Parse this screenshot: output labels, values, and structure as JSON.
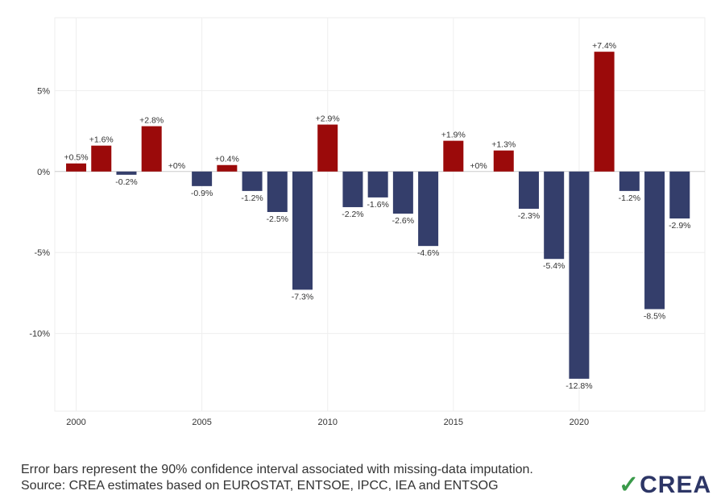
{
  "chart_data": {
    "type": "bar",
    "categories": [
      2000,
      2001,
      2002,
      2003,
      2004,
      2005,
      2006,
      2007,
      2008,
      2009,
      2010,
      2011,
      2012,
      2013,
      2014,
      2015,
      2016,
      2017,
      2018,
      2019,
      2020,
      2021,
      2022,
      2023,
      2024
    ],
    "values": [
      0.5,
      1.6,
      -0.2,
      2.8,
      0,
      -0.9,
      0.4,
      -1.2,
      -2.5,
      -7.3,
      2.9,
      -2.2,
      -1.6,
      -2.6,
      -4.6,
      1.9,
      0,
      1.3,
      -2.3,
      -5.4,
      -12.8,
      7.4,
      -1.2,
      -8.5,
      -2.9
    ],
    "labels": [
      "+0.5%",
      "+1.6%",
      "-0.2%",
      "+2.8%",
      "+0%",
      "-0.9%",
      "+0.4%",
      "-1.2%",
      "-2.5%",
      "-7.3%",
      "+2.9%",
      "-2.2%",
      "-1.6%",
      "-2.6%",
      "-4.6%",
      "+1.9%",
      "+0%",
      "+1.3%",
      "-2.3%",
      "-5.4%",
      "-12.8%",
      "+7.4%",
      "-1.2%",
      "-8.5%",
      "-2.9%"
    ],
    "xticks": [
      2000,
      2005,
      2010,
      2015,
      2020
    ],
    "yticks": [
      {
        "v": 5,
        "label": "5%"
      },
      {
        "v": 0,
        "label": "0%"
      },
      {
        "v": -5,
        "label": "-5%"
      },
      {
        "v": -10,
        "label": "-10%"
      }
    ],
    "ylim": [
      -14.8,
      9.5
    ],
    "xlim": [
      1999.15,
      2025.0
    ],
    "grid": true,
    "colors": {
      "positive": "#9b0a0a",
      "negative": "#343e6b"
    }
  },
  "notes": {
    "error_bars": "Error bars represent the 90% confidence interval associated with missing-data imputation.",
    "source": "Source: CREA estimates based on EUROSTAT, ENTSOE, IPCC, IEA and ENTSOG"
  },
  "logo": {
    "text": "CREA"
  }
}
